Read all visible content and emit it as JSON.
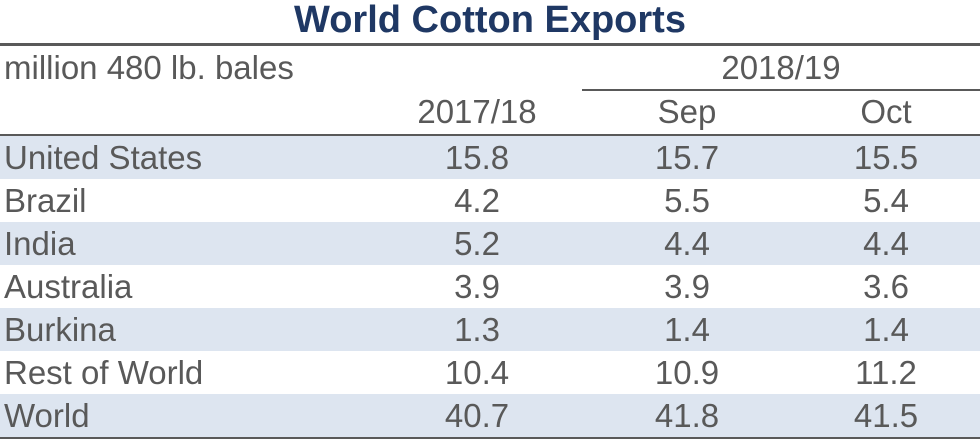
{
  "chart_data": {
    "type": "table",
    "title": "World Cotton Exports",
    "unit_label": "million 480 lb. bales",
    "column_group": "2018/19",
    "columns": [
      "2017/18",
      "Sep",
      "Oct"
    ],
    "rows": [
      {
        "name": "United States",
        "values": [
          "15.8",
          "15.7",
          "15.5"
        ]
      },
      {
        "name": "Brazil",
        "values": [
          "4.2",
          "5.5",
          "5.4"
        ]
      },
      {
        "name": "India",
        "values": [
          "5.2",
          "4.4",
          "4.4"
        ]
      },
      {
        "name": "Australia",
        "values": [
          "3.9",
          "3.9",
          "3.6"
        ]
      },
      {
        "name": "Burkina",
        "values": [
          "1.3",
          "1.4",
          "1.4"
        ]
      },
      {
        "name": "Rest of World",
        "values": [
          "10.4",
          "10.9",
          "11.2"
        ]
      },
      {
        "name": "World",
        "values": [
          "40.7",
          "41.8",
          "41.5"
        ]
      }
    ]
  },
  "colors": {
    "title": "#1f3864",
    "text": "#595959",
    "row_shade": "#dde5f0",
    "rule": "#595959"
  }
}
